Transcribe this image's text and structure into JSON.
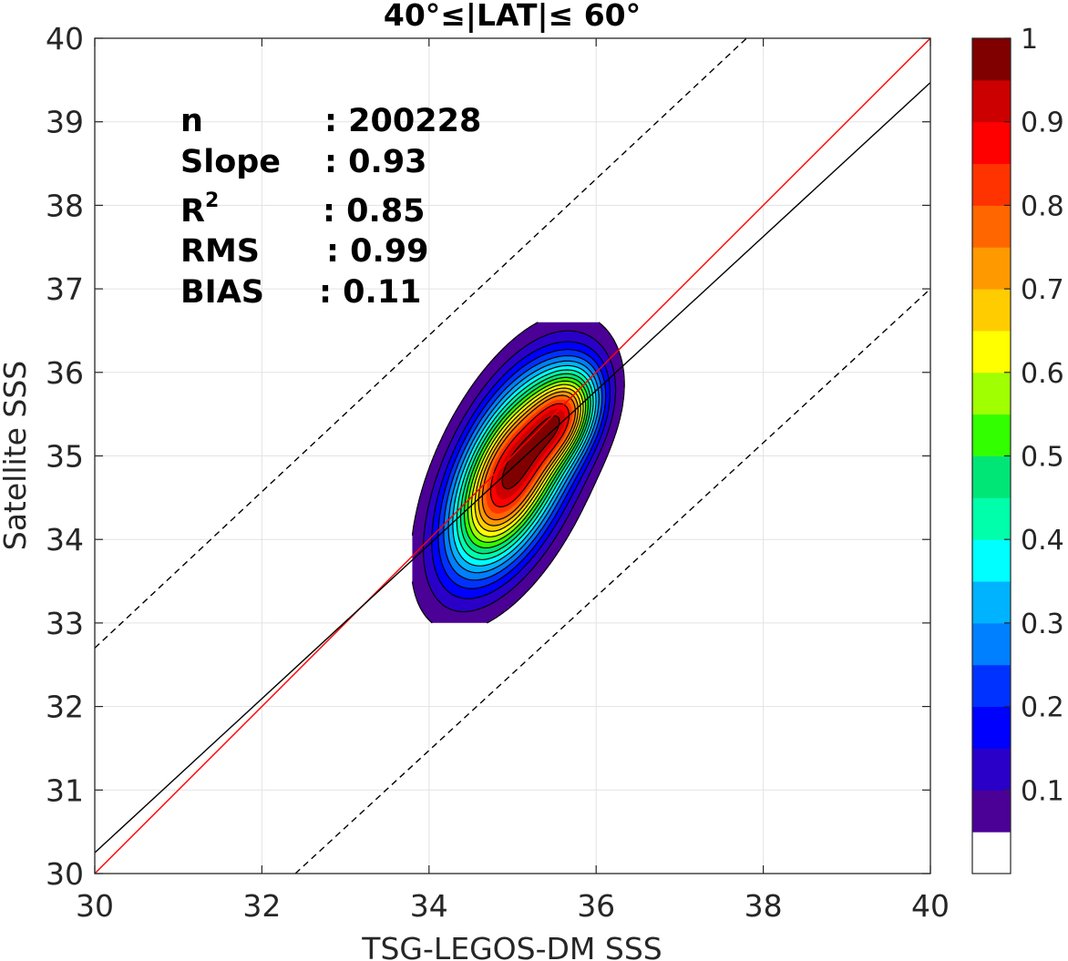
{
  "chart_data": {
    "type": "contour",
    "title": "40°≤|LAT|≤ 60°",
    "xlabel": "TSG-LEGOS-DM SSS",
    "ylabel": "Satellite SSS",
    "xlim": [
      30,
      40
    ],
    "ylim": [
      30,
      40
    ],
    "xticks": [
      "30",
      "32",
      "34",
      "36",
      "38",
      "40"
    ],
    "yticks": [
      "30",
      "31",
      "32",
      "33",
      "34",
      "35",
      "36",
      "37",
      "38",
      "39",
      "40"
    ],
    "grid": true,
    "stats": {
      "n_label": "n",
      "n_value": ": 200228",
      "slope_label": "Slope",
      "slope_value": ": 0.93",
      "r2_label": "R",
      "r2_sup": "2",
      "r2_value": ": 0.85",
      "rms_label": "RMS",
      "rms_value": ": 0.99",
      "bias_label": "BIAS",
      "bias_value": ": 0.11"
    },
    "lines": [
      {
        "kind": "one-to-one",
        "color": "#ff0000",
        "points": [
          [
            30,
            30
          ],
          [
            40,
            40
          ]
        ]
      },
      {
        "kind": "regression",
        "color": "#000000",
        "points": [
          [
            30,
            30.25
          ],
          [
            40,
            39.47
          ]
        ]
      },
      {
        "kind": "upper-bound",
        "color": "#000000",
        "dashed": true,
        "points": [
          [
            30,
            32.7
          ],
          [
            37.8,
            40
          ]
        ]
      },
      {
        "kind": "lower-bound",
        "color": "#000000",
        "dashed": true,
        "points": [
          [
            32.4,
            30
          ],
          [
            40,
            37
          ]
        ]
      }
    ],
    "density_peaks": [
      {
        "x": 35.0,
        "y": 34.8,
        "sx": 0.5,
        "sy": 0.78,
        "rho": 0.55,
        "amp": 1.0
      },
      {
        "x": 35.65,
        "y": 35.5,
        "sx": 0.28,
        "sy": 0.38,
        "rho": 0.35,
        "amp": 0.48
      }
    ],
    "contour_levels": [
      0.05,
      0.1,
      0.15,
      0.2,
      0.25,
      0.3,
      0.35,
      0.4,
      0.45,
      0.5,
      0.55,
      0.6,
      0.65,
      0.7,
      0.75,
      0.8,
      0.85,
      0.9,
      0.95
    ],
    "colorbar": {
      "ticks": [
        "0.1",
        "0.2",
        "0.3",
        "0.4",
        "0.5",
        "0.6",
        "0.7",
        "0.8",
        "0.9",
        "1"
      ],
      "tick_values": [
        0.1,
        0.2,
        0.3,
        0.4,
        0.5,
        0.6,
        0.7,
        0.8,
        0.9,
        1.0
      ],
      "colors": [
        "#ffffff",
        "#4b0096",
        "#2a00c8",
        "#0000ff",
        "#0032ff",
        "#007fff",
        "#00b3ff",
        "#00ffff",
        "#00ffaa",
        "#00e676",
        "#32ff00",
        "#a0ff00",
        "#ffff00",
        "#ffcc00",
        "#ff9900",
        "#ff6600",
        "#ff3300",
        "#ff0000",
        "#cc0000",
        "#800000"
      ]
    }
  }
}
